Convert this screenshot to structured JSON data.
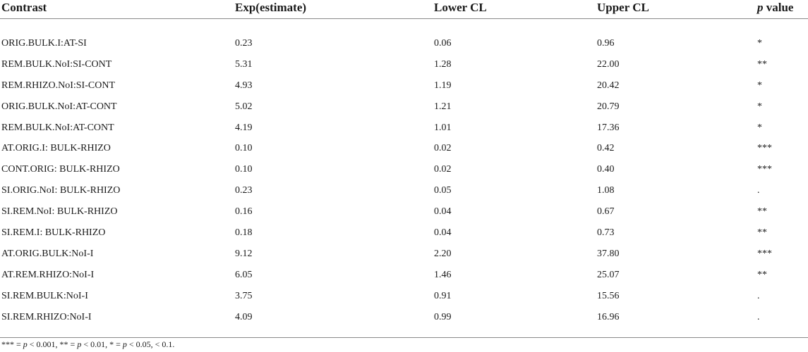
{
  "table": {
    "headers": {
      "contrast": "Contrast",
      "estimate": "Exp(estimate)",
      "lower": "Lower CL",
      "upper": "Upper CL",
      "p_italic": "p",
      "p_rest": " value"
    },
    "rows": [
      {
        "contrast": "ORIG.BULK.I:AT-SI",
        "estimate": "0.23",
        "lower": "0.06",
        "upper": "0.96",
        "p": "*"
      },
      {
        "contrast": "REM.BULK.NoI:SI-CONT",
        "estimate": "5.31",
        "lower": "1.28",
        "upper": "22.00",
        "p": "**"
      },
      {
        "contrast": "REM.RHIZO.NoI:SI-CONT",
        "estimate": "4.93",
        "lower": "1.19",
        "upper": "20.42",
        "p": "*"
      },
      {
        "contrast": "ORIG.BULK.NoI:AT-CONT",
        "estimate": "5.02",
        "lower": "1.21",
        "upper": "20.79",
        "p": "*"
      },
      {
        "contrast": "REM.BULK.NoI:AT-CONT",
        "estimate": "4.19",
        "lower": "1.01",
        "upper": "17.36",
        "p": "*"
      },
      {
        "contrast": "AT.ORIG.I: BULK-RHIZO",
        "estimate": "0.10",
        "lower": "0.02",
        "upper": "0.42",
        "p": "***"
      },
      {
        "contrast": "CONT.ORIG: BULK-RHIZO",
        "estimate": "0.10",
        "lower": "0.02",
        "upper": "0.40",
        "p": "***"
      },
      {
        "contrast": "SI.ORIG.NoI: BULK-RHIZO",
        "estimate": "0.23",
        "lower": "0.05",
        "upper": "1.08",
        "p": "."
      },
      {
        "contrast": "SI.REM.NoI: BULK-RHIZO",
        "estimate": "0.16",
        "lower": "0.04",
        "upper": "0.67",
        "p": "**"
      },
      {
        "contrast": "SI.REM.I: BULK-RHIZO",
        "estimate": "0.18",
        "lower": "0.04",
        "upper": "0.73",
        "p": "**"
      },
      {
        "contrast": "AT.ORIG.BULK:NoI-I",
        "estimate": "9.12",
        "lower": "2.20",
        "upper": "37.80",
        "p": "***"
      },
      {
        "contrast": "AT.REM.RHIZO:NoI-I",
        "estimate": "6.05",
        "lower": "1.46",
        "upper": "25.07",
        "p": "**"
      },
      {
        "contrast": "SI.REM.BULK:NoI-I",
        "estimate": "3.75",
        "lower": "0.91",
        "upper": "15.56",
        "p": "."
      },
      {
        "contrast": "SI.REM.RHIZO:NoI-I",
        "estimate": "4.09",
        "lower": "0.99",
        "upper": "16.96",
        "p": "."
      }
    ]
  },
  "footnote": {
    "part1": "*** = ",
    "p1": "p",
    "part2": " < 0.001, ** = ",
    "p2": "p",
    "part3": " < 0.01, * = ",
    "p3": "p",
    "part4": " < 0.05, < 0.1."
  }
}
